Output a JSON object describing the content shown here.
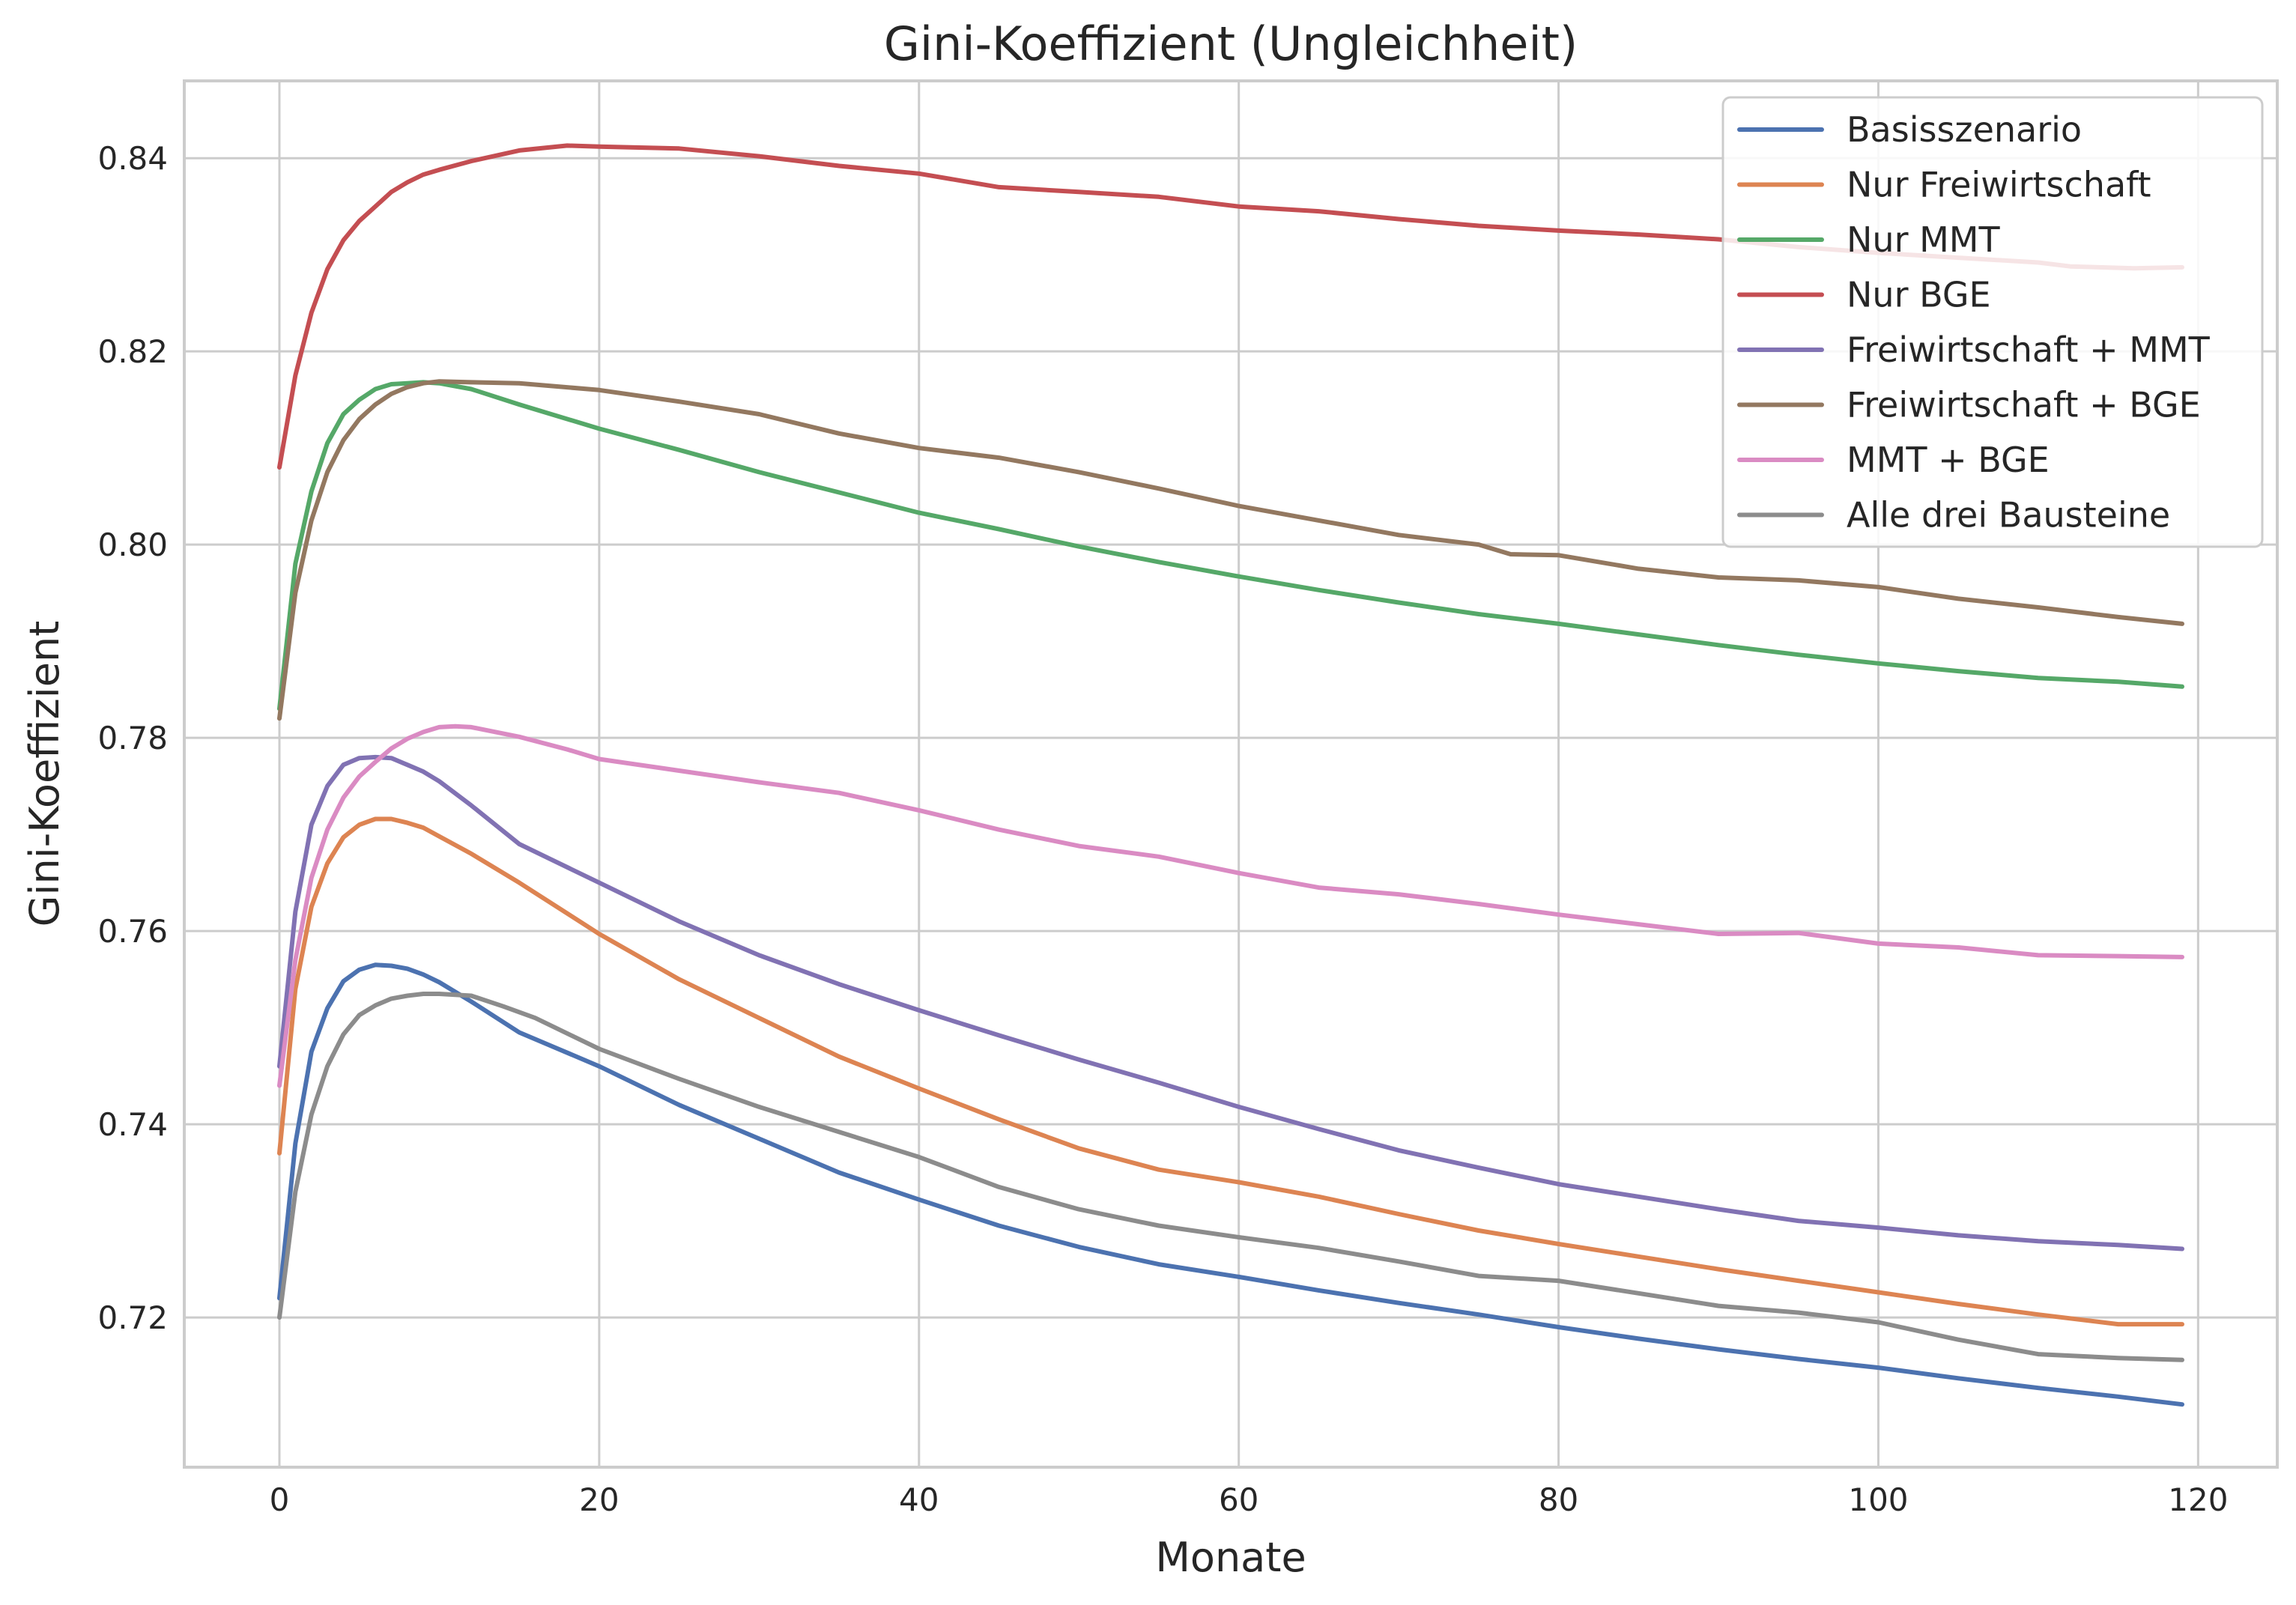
{
  "chart_data": {
    "type": "line",
    "title": "Gini-Koeffizient (Ungleichheit)",
    "xlabel": "Monate",
    "ylabel": "Gini-Koeffizient",
    "xlim": [
      -5.95,
      124.95
    ],
    "ylim": [
      0.7045,
      0.848
    ],
    "xticks": [
      0,
      20,
      40,
      60,
      80,
      100,
      120
    ],
    "yticks": [
      0.72,
      0.74,
      0.76,
      0.78,
      0.8,
      0.82,
      0.84
    ],
    "ytick_labels": [
      "0.72",
      "0.74",
      "0.76",
      "0.78",
      "0.80",
      "0.82",
      "0.84"
    ],
    "grid": true,
    "legend_position": "top-right",
    "series": [
      {
        "name": "Basisszenario",
        "color": "#4c72b0",
        "points": [
          [
            0,
            0.722
          ],
          [
            1,
            0.738
          ],
          [
            2,
            0.7475
          ],
          [
            3,
            0.752
          ],
          [
            4,
            0.7548
          ],
          [
            5,
            0.756
          ],
          [
            6,
            0.7565
          ],
          [
            7,
            0.7564
          ],
          [
            8,
            0.7561
          ],
          [
            9,
            0.7555
          ],
          [
            10,
            0.7547
          ],
          [
            12,
            0.7527
          ],
          [
            15,
            0.7495
          ],
          [
            20,
            0.746
          ],
          [
            25,
            0.742
          ],
          [
            30,
            0.7385
          ],
          [
            35,
            0.735
          ],
          [
            40,
            0.7322
          ],
          [
            45,
            0.7295
          ],
          [
            50,
            0.7273
          ],
          [
            55,
            0.7255
          ],
          [
            60,
            0.7242
          ],
          [
            65,
            0.7228
          ],
          [
            70,
            0.7215
          ],
          [
            75,
            0.7203
          ],
          [
            80,
            0.719
          ],
          [
            85,
            0.7178
          ],
          [
            90,
            0.7167
          ],
          [
            95,
            0.7157
          ],
          [
            100,
            0.7148
          ],
          [
            105,
            0.7137
          ],
          [
            110,
            0.7127
          ],
          [
            115,
            0.7118
          ],
          [
            119,
            0.711
          ]
        ]
      },
      {
        "name": "Nur Freiwirtschaft",
        "color": "#dd8452",
        "points": [
          [
            0,
            0.737
          ],
          [
            1,
            0.754
          ],
          [
            2,
            0.7625
          ],
          [
            3,
            0.767
          ],
          [
            4,
            0.7697
          ],
          [
            5,
            0.771
          ],
          [
            6,
            0.7716
          ],
          [
            7,
            0.7716
          ],
          [
            8,
            0.7712
          ],
          [
            9,
            0.7707
          ],
          [
            10,
            0.7698
          ],
          [
            12,
            0.768
          ],
          [
            15,
            0.765
          ],
          [
            20,
            0.7597
          ],
          [
            25,
            0.755
          ],
          [
            30,
            0.751
          ],
          [
            35,
            0.747
          ],
          [
            40,
            0.7437
          ],
          [
            45,
            0.7405
          ],
          [
            50,
            0.7375
          ],
          [
            55,
            0.7353
          ],
          [
            60,
            0.734
          ],
          [
            65,
            0.7325
          ],
          [
            70,
            0.7307
          ],
          [
            75,
            0.729
          ],
          [
            80,
            0.7276
          ],
          [
            85,
            0.7263
          ],
          [
            90,
            0.725
          ],
          [
            95,
            0.7238
          ],
          [
            100,
            0.7226
          ],
          [
            105,
            0.7214
          ],
          [
            110,
            0.7203
          ],
          [
            115,
            0.7193
          ],
          [
            119,
            0.7193
          ]
        ]
      },
      {
        "name": "Nur MMT",
        "color": "#55a868",
        "points": [
          [
            0,
            0.783
          ],
          [
            1,
            0.798
          ],
          [
            2,
            0.8055
          ],
          [
            3,
            0.8105
          ],
          [
            4,
            0.8135
          ],
          [
            5,
            0.815
          ],
          [
            6,
            0.8161
          ],
          [
            7,
            0.8166
          ],
          [
            8,
            0.8167
          ],
          [
            9,
            0.8168
          ],
          [
            10,
            0.8167
          ],
          [
            12,
            0.8161
          ],
          [
            15,
            0.8145
          ],
          [
            20,
            0.812
          ],
          [
            25,
            0.8098
          ],
          [
            30,
            0.8075
          ],
          [
            35,
            0.8054
          ],
          [
            40,
            0.8033
          ],
          [
            45,
            0.8016
          ],
          [
            50,
            0.7998
          ],
          [
            55,
            0.7982
          ],
          [
            60,
            0.7967
          ],
          [
            65,
            0.7953
          ],
          [
            70,
            0.794
          ],
          [
            75,
            0.7928
          ],
          [
            80,
            0.7918
          ],
          [
            85,
            0.7907
          ],
          [
            90,
            0.7896
          ],
          [
            95,
            0.7886
          ],
          [
            100,
            0.7877
          ],
          [
            105,
            0.7869
          ],
          [
            110,
            0.7862
          ],
          [
            115,
            0.7858
          ],
          [
            119,
            0.7853
          ]
        ]
      },
      {
        "name": "Nur BGE",
        "color": "#c44e52",
        "points": [
          [
            0,
            0.808
          ],
          [
            1,
            0.8175
          ],
          [
            2,
            0.824
          ],
          [
            3,
            0.8285
          ],
          [
            4,
            0.8315
          ],
          [
            5,
            0.8335
          ],
          [
            6,
            0.835
          ],
          [
            7,
            0.8365
          ],
          [
            8,
            0.8375
          ],
          [
            9,
            0.8383
          ],
          [
            10,
            0.8388
          ],
          [
            12,
            0.8397
          ],
          [
            15,
            0.8408
          ],
          [
            18,
            0.8413
          ],
          [
            20,
            0.8412
          ],
          [
            25,
            0.841
          ],
          [
            30,
            0.8402
          ],
          [
            35,
            0.8392
          ],
          [
            40,
            0.8384
          ],
          [
            45,
            0.837
          ],
          [
            50,
            0.8365
          ],
          [
            55,
            0.836
          ],
          [
            60,
            0.835
          ],
          [
            65,
            0.8345
          ],
          [
            70,
            0.8337
          ],
          [
            75,
            0.833
          ],
          [
            80,
            0.8325
          ],
          [
            85,
            0.8321
          ],
          [
            90,
            0.8316
          ],
          [
            95,
            0.8308
          ],
          [
            100,
            0.8302
          ],
          [
            105,
            0.8297
          ],
          [
            110,
            0.8292
          ],
          [
            112,
            0.8288
          ],
          [
            116,
            0.8286
          ],
          [
            119,
            0.8287
          ]
        ]
      },
      {
        "name": "Freiwirtschaft + MMT",
        "color": "#8172b3",
        "points": [
          [
            0,
            0.746
          ],
          [
            1,
            0.762
          ],
          [
            2,
            0.771
          ],
          [
            3,
            0.775
          ],
          [
            4,
            0.7772
          ],
          [
            5,
            0.7779
          ],
          [
            6,
            0.778
          ],
          [
            7,
            0.7779
          ],
          [
            8,
            0.7772
          ],
          [
            9,
            0.7765
          ],
          [
            10,
            0.7755
          ],
          [
            12,
            0.773
          ],
          [
            15,
            0.769
          ],
          [
            20,
            0.765
          ],
          [
            25,
            0.761
          ],
          [
            30,
            0.7575
          ],
          [
            35,
            0.7545
          ],
          [
            40,
            0.7518
          ],
          [
            45,
            0.7492
          ],
          [
            50,
            0.7467
          ],
          [
            55,
            0.7443
          ],
          [
            60,
            0.7418
          ],
          [
            65,
            0.7395
          ],
          [
            70,
            0.7373
          ],
          [
            75,
            0.7355
          ],
          [
            80,
            0.7338
          ],
          [
            85,
            0.7325
          ],
          [
            90,
            0.7312
          ],
          [
            95,
            0.73
          ],
          [
            100,
            0.7293
          ],
          [
            105,
            0.7285
          ],
          [
            110,
            0.7279
          ],
          [
            115,
            0.7275
          ],
          [
            119,
            0.7271
          ]
        ]
      },
      {
        "name": "Freiwirtschaft + BGE",
        "color": "#937860",
        "points": [
          [
            0,
            0.782
          ],
          [
            1,
            0.795
          ],
          [
            2,
            0.8025
          ],
          [
            3,
            0.8075
          ],
          [
            4,
            0.8108
          ],
          [
            5,
            0.813
          ],
          [
            6,
            0.8145
          ],
          [
            7,
            0.8156
          ],
          [
            8,
            0.8163
          ],
          [
            9,
            0.8167
          ],
          [
            10,
            0.8169
          ],
          [
            12,
            0.8168
          ],
          [
            15,
            0.8167
          ],
          [
            20,
            0.816
          ],
          [
            25,
            0.8148
          ],
          [
            30,
            0.8135
          ],
          [
            35,
            0.8115
          ],
          [
            40,
            0.81
          ],
          [
            45,
            0.809
          ],
          [
            50,
            0.8075
          ],
          [
            55,
            0.8058
          ],
          [
            60,
            0.804
          ],
          [
            65,
            0.8025
          ],
          [
            70,
            0.801
          ],
          [
            75,
            0.8
          ],
          [
            77,
            0.799
          ],
          [
            80,
            0.7989
          ],
          [
            85,
            0.7975
          ],
          [
            90,
            0.7966
          ],
          [
            95,
            0.7963
          ],
          [
            100,
            0.7956
          ],
          [
            105,
            0.7944
          ],
          [
            110,
            0.7935
          ],
          [
            115,
            0.7925
          ],
          [
            119,
            0.7918
          ]
        ]
      },
      {
        "name": "MMT + BGE",
        "color": "#da8bc3",
        "points": [
          [
            0,
            0.744
          ],
          [
            1,
            0.757
          ],
          [
            2,
            0.7655
          ],
          [
            3,
            0.7705
          ],
          [
            4,
            0.7738
          ],
          [
            5,
            0.776
          ],
          [
            6,
            0.7775
          ],
          [
            7,
            0.7789
          ],
          [
            8,
            0.7799
          ],
          [
            9,
            0.7806
          ],
          [
            10,
            0.7811
          ],
          [
            11,
            0.7812
          ],
          [
            12,
            0.7811
          ],
          [
            15,
            0.7801
          ],
          [
            18,
            0.7788
          ],
          [
            20,
            0.7778
          ],
          [
            25,
            0.7766
          ],
          [
            30,
            0.7754
          ],
          [
            35,
            0.7743
          ],
          [
            40,
            0.7725
          ],
          [
            45,
            0.7705
          ],
          [
            50,
            0.7688
          ],
          [
            55,
            0.7677
          ],
          [
            60,
            0.766
          ],
          [
            65,
            0.7645
          ],
          [
            70,
            0.7638
          ],
          [
            75,
            0.7628
          ],
          [
            80,
            0.7617
          ],
          [
            85,
            0.7607
          ],
          [
            90,
            0.7597
          ],
          [
            95,
            0.7598
          ],
          [
            100,
            0.7587
          ],
          [
            105,
            0.7583
          ],
          [
            110,
            0.7575
          ],
          [
            115,
            0.7574
          ],
          [
            119,
            0.7573
          ]
        ]
      },
      {
        "name": "Alle drei Bausteine",
        "color": "#8c8c8c",
        "points": [
          [
            0,
            0.72
          ],
          [
            1,
            0.733
          ],
          [
            2,
            0.741
          ],
          [
            3,
            0.746
          ],
          [
            4,
            0.7493
          ],
          [
            5,
            0.7513
          ],
          [
            6,
            0.7523
          ],
          [
            7,
            0.753
          ],
          [
            8,
            0.7533
          ],
          [
            9,
            0.7535
          ],
          [
            10,
            0.7535
          ],
          [
            12,
            0.7533
          ],
          [
            14,
            0.7522
          ],
          [
            16,
            0.751
          ],
          [
            20,
            0.7478
          ],
          [
            25,
            0.7447
          ],
          [
            30,
            0.7418
          ],
          [
            35,
            0.7392
          ],
          [
            40,
            0.7366
          ],
          [
            45,
            0.7335
          ],
          [
            50,
            0.7312
          ],
          [
            55,
            0.7295
          ],
          [
            60,
            0.7283
          ],
          [
            65,
            0.7272
          ],
          [
            70,
            0.7258
          ],
          [
            75,
            0.7243
          ],
          [
            80,
            0.7238
          ],
          [
            85,
            0.7225
          ],
          [
            90,
            0.7212
          ],
          [
            95,
            0.7205
          ],
          [
            100,
            0.7195
          ],
          [
            105,
            0.7177
          ],
          [
            110,
            0.7162
          ],
          [
            115,
            0.7158
          ],
          [
            119,
            0.7156
          ]
        ]
      }
    ]
  }
}
